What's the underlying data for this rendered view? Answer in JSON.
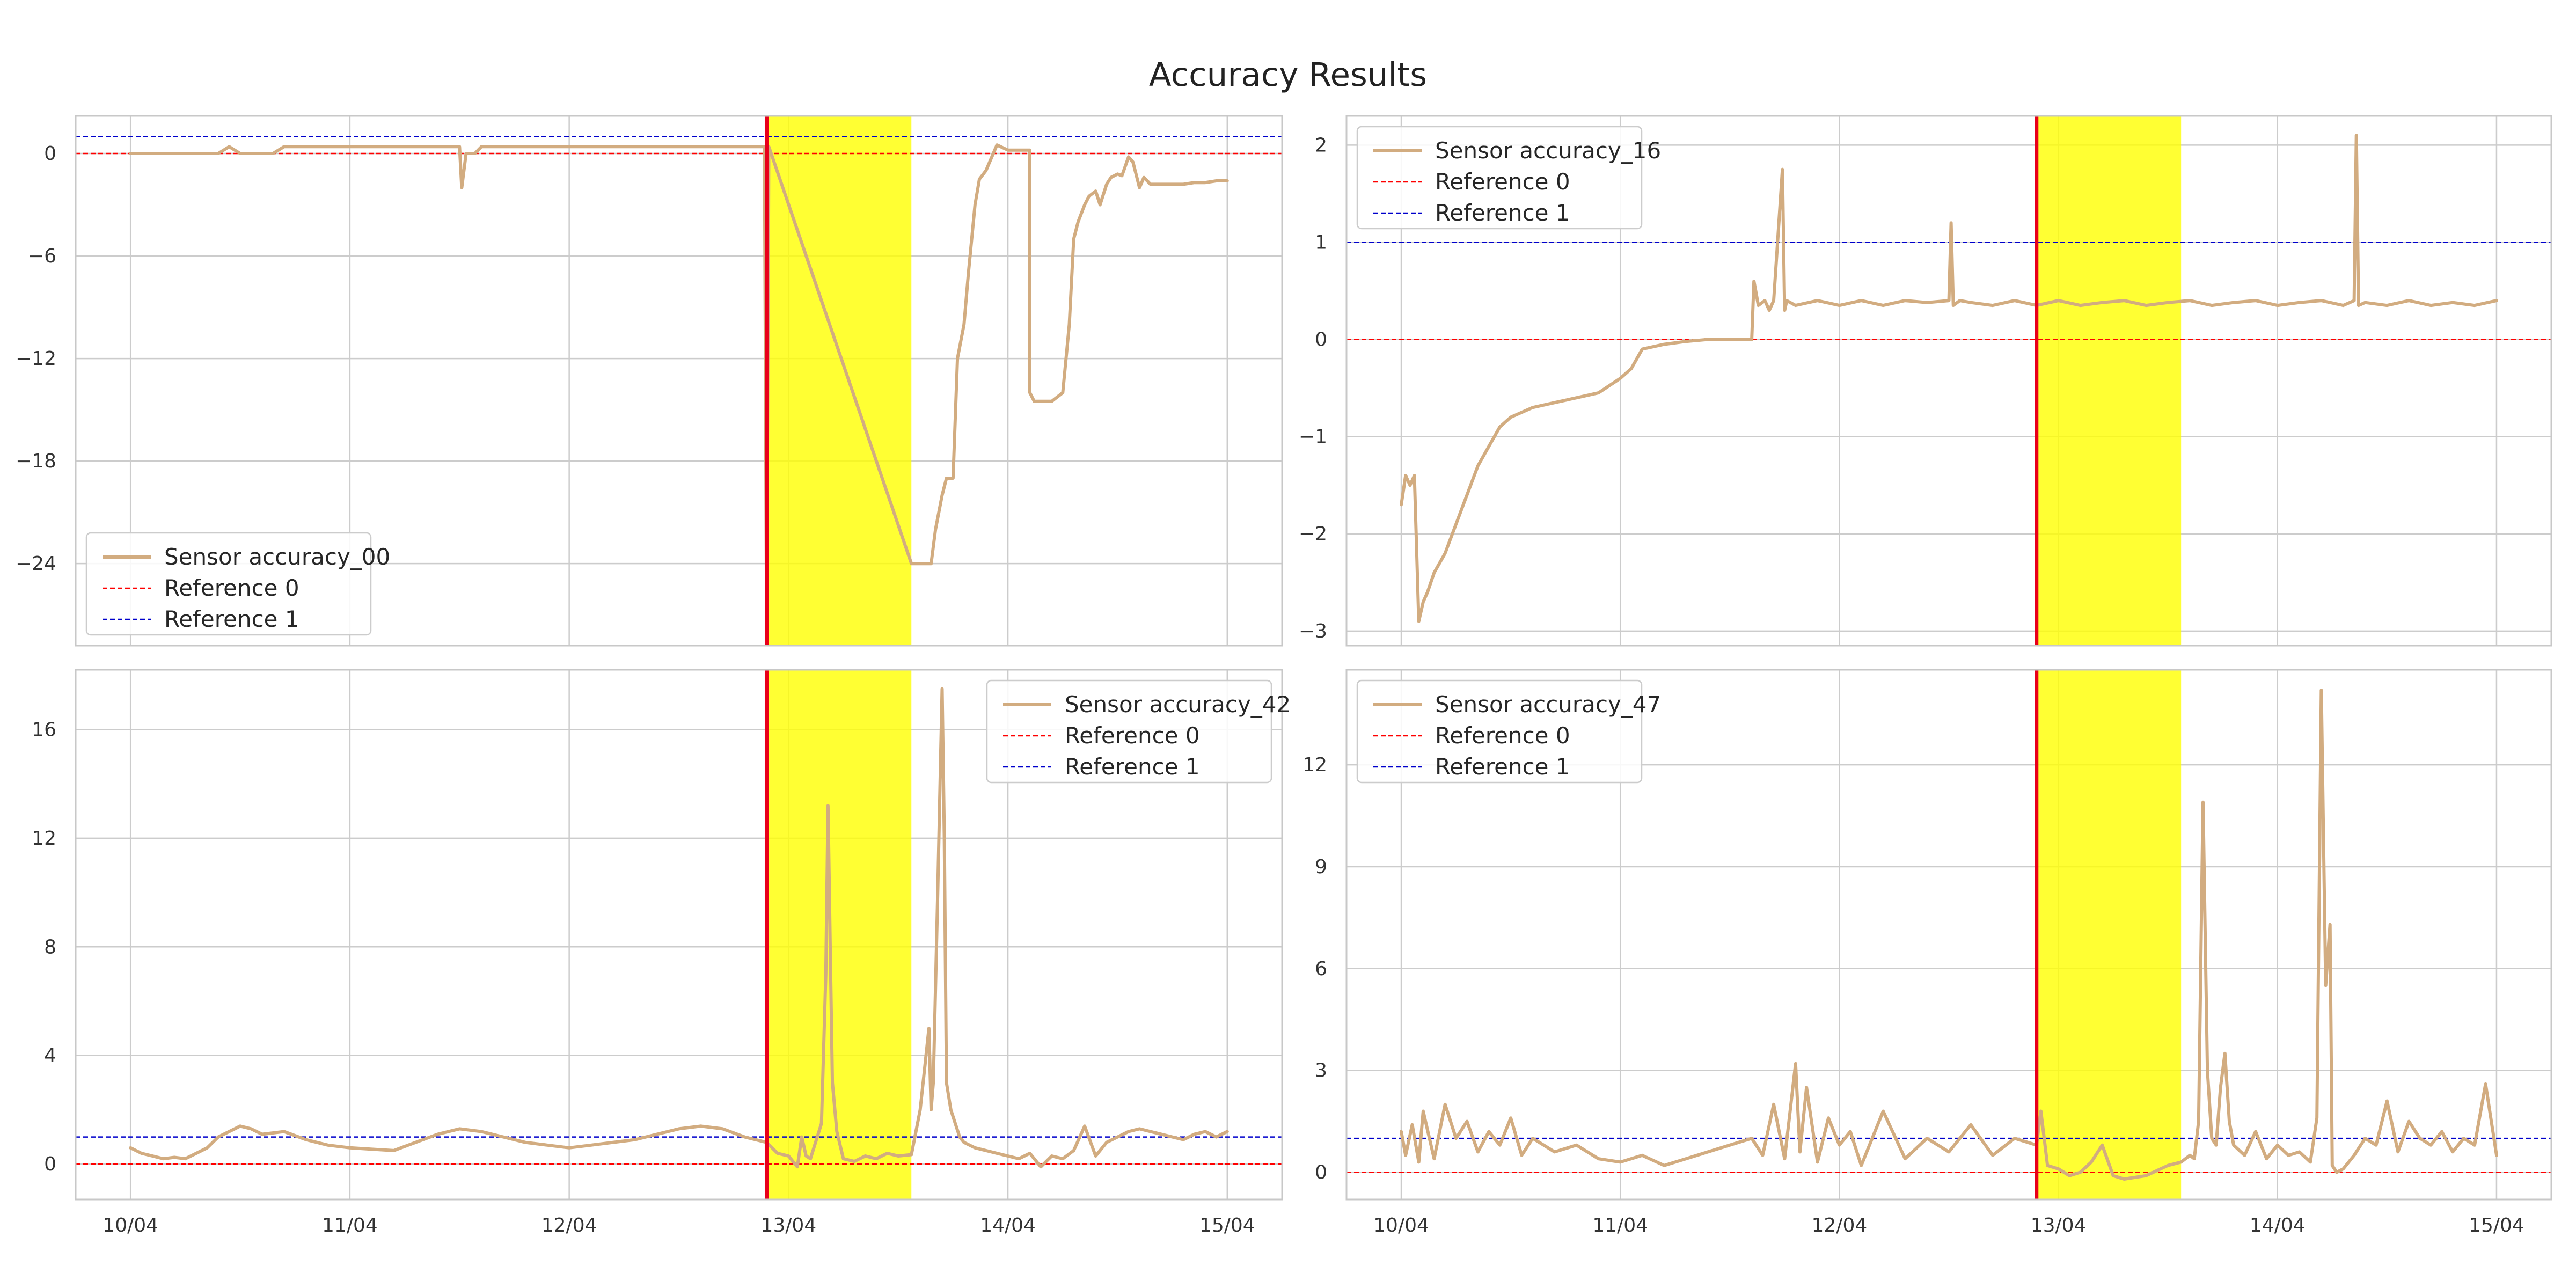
{
  "title": "Accuracy Results",
  "colors": {
    "sensor": "#d2ac80",
    "reference_0": "#ff0000",
    "reference_1": "#0000cc",
    "event_line": "#e8001a",
    "highlight": "#ffff00"
  },
  "chart_data": [
    {
      "type": "line",
      "x_ticks": [
        "10/04",
        "11/04",
        "12/04",
        "13/04",
        "14/04",
        "15/04"
      ],
      "x_tick_days": [
        0,
        1,
        2,
        3,
        4,
        5
      ],
      "xlim": [
        -0.25,
        5.25
      ],
      "ylim": [
        -28.8,
        2.2
      ],
      "y_ticks": [
        0,
        -6,
        -12,
        -18,
        -24
      ],
      "y_tick_labels": [
        "0",
        "−6",
        "−12",
        "−18",
        "−24"
      ],
      "grid": true,
      "legend_position": "lower-left",
      "event_x": 2.9,
      "highlight_range": [
        2.9,
        3.56
      ],
      "series": [
        {
          "name": "Sensor accuracy_00",
          "x": [
            0,
            0.05,
            0.1,
            0.15,
            0.2,
            0.25,
            0.3,
            0.35,
            0.4,
            0.45,
            0.5,
            0.55,
            0.6,
            0.65,
            0.7,
            0.8,
            0.9,
            1.0,
            1.1,
            1.2,
            1.3,
            1.4,
            1.5,
            1.51,
            1.53,
            1.55,
            1.57,
            1.6,
            1.65,
            1.7,
            1.72,
            1.75,
            1.8,
            1.9,
            2.0,
            2.1,
            2.2,
            2.3,
            2.4,
            2.5,
            2.6,
            2.7,
            2.8,
            2.89,
            2.9,
            2.91,
            3.56,
            3.6,
            3.65,
            3.67,
            3.7,
            3.72,
            3.75,
            3.77,
            3.8,
            3.82,
            3.85,
            3.87,
            3.9,
            3.95,
            4.0,
            4.05,
            4.1,
            4.1,
            4.12,
            4.13,
            4.15,
            4.2,
            4.25,
            4.28,
            4.3,
            4.32,
            4.35,
            4.37,
            4.4,
            4.42,
            4.45,
            4.47,
            4.5,
            4.52,
            4.55,
            4.57,
            4.6,
            4.62,
            4.65,
            4.7,
            4.75,
            4.8,
            4.85,
            4.9,
            4.95,
            5.0
          ],
          "y": [
            0,
            0,
            0,
            0,
            0,
            0,
            0,
            0,
            0,
            0.4,
            0,
            0,
            0,
            0,
            0.4,
            0.4,
            0.4,
            0.4,
            0.4,
            0.4,
            0.4,
            0.4,
            0.4,
            -2,
            0,
            0,
            0,
            0.4,
            0.4,
            0.4,
            0.4,
            0.4,
            0.4,
            0.4,
            0.4,
            0.4,
            0.4,
            0.4,
            0.4,
            0.4,
            0.4,
            0.4,
            0.4,
            0.4,
            -28,
            0.4,
            -24,
            -24,
            -24,
            -22,
            -20,
            -19,
            -19,
            -12,
            -10,
            -7,
            -3,
            -1.5,
            -1,
            0.5,
            0.2,
            0.2,
            0.2,
            -14,
            -14.5,
            -14.5,
            -14.5,
            -14.5,
            -14,
            -10,
            -5,
            -4,
            -3,
            -2.5,
            -2.2,
            -3,
            -1.8,
            -1.4,
            -1.2,
            -1.3,
            -0.2,
            -0.5,
            -2,
            -1.4,
            -1.8,
            -1.8,
            -1.8,
            -1.8,
            -1.7,
            -1.7,
            -1.6,
            -1.6
          ]
        },
        {
          "name": "Reference 0",
          "constant": 0
        },
        {
          "name": "Reference 1",
          "constant": 1
        }
      ]
    },
    {
      "type": "line",
      "x_ticks": [
        "10/04",
        "11/04",
        "12/04",
        "13/04",
        "14/04",
        "15/04"
      ],
      "x_tick_days": [
        0,
        1,
        2,
        3,
        4,
        5
      ],
      "xlim": [
        -0.25,
        5.25
      ],
      "ylim": [
        -3.15,
        2.3
      ],
      "y_ticks": [
        2,
        1,
        0,
        -1,
        -2,
        -3
      ],
      "y_tick_labels": [
        "2",
        "1",
        "0",
        "−1",
        "−2",
        "−3"
      ],
      "grid": true,
      "legend_position": "upper-left",
      "event_x": 2.9,
      "highlight_range": [
        2.9,
        3.56
      ],
      "series": [
        {
          "name": "Sensor accuracy_16",
          "x": [
            0,
            0.02,
            0.04,
            0.06,
            0.08,
            0.1,
            0.12,
            0.15,
            0.2,
            0.25,
            0.3,
            0.35,
            0.4,
            0.45,
            0.5,
            0.6,
            0.7,
            0.8,
            0.9,
            1.0,
            1.05,
            1.1,
            1.2,
            1.3,
            1.4,
            1.5,
            1.6,
            1.61,
            1.63,
            1.66,
            1.68,
            1.7,
            1.74,
            1.75,
            1.76,
            1.8,
            1.9,
            2.0,
            2.1,
            2.2,
            2.3,
            2.4,
            2.5,
            2.51,
            2.52,
            2.55,
            2.6,
            2.7,
            2.8,
            2.9,
            3.0,
            3.1,
            3.2,
            3.3,
            3.4,
            3.5,
            3.6,
            3.7,
            3.8,
            3.9,
            4.0,
            4.1,
            4.2,
            4.3,
            4.35,
            4.36,
            4.37,
            4.4,
            4.5,
            4.6,
            4.7,
            4.8,
            4.9,
            5.0
          ],
          "y": [
            -1.7,
            -1.4,
            -1.5,
            -1.4,
            -2.9,
            -2.7,
            -2.6,
            -2.4,
            -2.2,
            -1.9,
            -1.6,
            -1.3,
            -1.1,
            -0.9,
            -0.8,
            -0.7,
            -0.65,
            -0.6,
            -0.55,
            -0.4,
            -0.3,
            -0.1,
            -0.05,
            -0.02,
            0,
            0,
            0,
            0.6,
            0.35,
            0.4,
            0.3,
            0.4,
            1.75,
            0.3,
            0.4,
            0.35,
            0.4,
            0.35,
            0.4,
            0.35,
            0.4,
            0.38,
            0.4,
            1.2,
            0.35,
            0.4,
            0.38,
            0.35,
            0.4,
            0.35,
            0.4,
            0.35,
            0.38,
            0.4,
            0.35,
            0.38,
            0.4,
            0.35,
            0.38,
            0.4,
            0.35,
            0.38,
            0.4,
            0.35,
            0.4,
            2.1,
            0.35,
            0.38,
            0.35,
            0.4,
            0.35,
            0.38,
            0.35,
            0.4
          ]
        },
        {
          "name": "Reference 0",
          "constant": 0
        },
        {
          "name": "Reference 1",
          "constant": 1
        }
      ]
    },
    {
      "type": "line",
      "x_ticks": [
        "10/04",
        "11/04",
        "12/04",
        "13/04",
        "14/04",
        "15/04"
      ],
      "x_tick_days": [
        0,
        1,
        2,
        3,
        4,
        5
      ],
      "xlim": [
        -0.25,
        5.25
      ],
      "ylim": [
        -1.3,
        18.2
      ],
      "y_ticks": [
        0,
        4,
        8,
        12,
        16
      ],
      "y_tick_labels": [
        "0",
        "4",
        "8",
        "12",
        "16"
      ],
      "grid": true,
      "legend_position": "upper-right",
      "event_x": 2.9,
      "highlight_range": [
        2.9,
        3.56
      ],
      "series": [
        {
          "name": "Sensor accuracy_42",
          "x": [
            0,
            0.05,
            0.1,
            0.15,
            0.2,
            0.25,
            0.3,
            0.35,
            0.4,
            0.45,
            0.5,
            0.55,
            0.6,
            0.7,
            0.8,
            0.9,
            1.0,
            1.1,
            1.2,
            1.3,
            1.4,
            1.5,
            1.6,
            1.7,
            1.8,
            1.9,
            2.0,
            2.1,
            2.2,
            2.3,
            2.4,
            2.5,
            2.6,
            2.7,
            2.8,
            2.9,
            2.95,
            3.0,
            3.02,
            3.04,
            3.06,
            3.08,
            3.1,
            3.15,
            3.17,
            3.18,
            3.19,
            3.2,
            3.22,
            3.25,
            3.3,
            3.35,
            3.4,
            3.45,
            3.5,
            3.56,
            3.6,
            3.62,
            3.64,
            3.65,
            3.66,
            3.68,
            3.7,
            3.71,
            3.72,
            3.74,
            3.76,
            3.78,
            3.8,
            3.85,
            3.9,
            3.95,
            4.0,
            4.05,
            4.1,
            4.15,
            4.2,
            4.25,
            4.3,
            4.35,
            4.4,
            4.45,
            4.5,
            4.55,
            4.6,
            4.65,
            4.7,
            4.75,
            4.8,
            4.85,
            4.9,
            4.95,
            5.0
          ],
          "y": [
            0.6,
            0.4,
            0.3,
            0.2,
            0.25,
            0.2,
            0.4,
            0.6,
            1,
            1.2,
            1.4,
            1.3,
            1.1,
            1.2,
            0.9,
            0.7,
            0.6,
            0.55,
            0.5,
            0.8,
            1.1,
            1.3,
            1.2,
            1.0,
            0.8,
            0.7,
            0.6,
            0.7,
            0.8,
            0.9,
            1.1,
            1.3,
            1.4,
            1.3,
            1.0,
            0.8,
            0.4,
            0.3,
            0.1,
            -0.1,
            1,
            0.3,
            0.2,
            1.5,
            7,
            13.2,
            8,
            3,
            1.2,
            0.2,
            0.1,
            0.3,
            0.2,
            0.4,
            0.3,
            0.35,
            2,
            3.5,
            5,
            2,
            3,
            10,
            17.5,
            12,
            3,
            2,
            1.5,
            1,
            0.8,
            0.6,
            0.5,
            0.4,
            0.3,
            0.2,
            0.4,
            -0.1,
            0.3,
            0.2,
            0.5,
            1.4,
            0.3,
            0.8,
            1.0,
            1.2,
            1.3,
            1.2,
            1.1,
            1.0,
            0.9,
            1.1,
            1.2,
            1.0,
            1.2
          ]
        },
        {
          "name": "Reference 0",
          "constant": 0
        },
        {
          "name": "Reference 1",
          "constant": 1
        }
      ]
    },
    {
      "type": "line",
      "x_ticks": [
        "10/04",
        "11/04",
        "12/04",
        "13/04",
        "14/04",
        "15/04"
      ],
      "x_tick_days": [
        0,
        1,
        2,
        3,
        4,
        5
      ],
      "xlim": [
        -0.25,
        5.25
      ],
      "ylim": [
        -0.8,
        14.8
      ],
      "y_ticks": [
        0,
        3,
        6,
        9,
        12
      ],
      "y_tick_labels": [
        "0",
        "3",
        "6",
        "9",
        "12"
      ],
      "grid": true,
      "legend_position": "upper-left",
      "event_x": 2.9,
      "highlight_range": [
        2.9,
        3.56
      ],
      "series": [
        {
          "name": "Sensor accuracy_47",
          "x": [
            0,
            0.02,
            0.05,
            0.08,
            0.1,
            0.15,
            0.2,
            0.25,
            0.3,
            0.35,
            0.4,
            0.45,
            0.5,
            0.55,
            0.6,
            0.7,
            0.8,
            0.9,
            1.0,
            1.1,
            1.2,
            1.3,
            1.4,
            1.5,
            1.6,
            1.65,
            1.7,
            1.75,
            1.8,
            1.82,
            1.85,
            1.9,
            1.95,
            2.0,
            2.05,
            2.1,
            2.2,
            2.3,
            2.4,
            2.5,
            2.6,
            2.7,
            2.8,
            2.9,
            2.92,
            2.95,
            3.0,
            3.05,
            3.1,
            3.15,
            3.2,
            3.25,
            3.3,
            3.4,
            3.5,
            3.56,
            3.6,
            3.62,
            3.64,
            3.66,
            3.68,
            3.7,
            3.72,
            3.74,
            3.76,
            3.78,
            3.8,
            3.85,
            3.9,
            3.95,
            4.0,
            4.05,
            4.1,
            4.15,
            4.18,
            4.2,
            4.22,
            4.24,
            4.25,
            4.27,
            4.3,
            4.35,
            4.4,
            4.45,
            4.5,
            4.55,
            4.6,
            4.65,
            4.7,
            4.75,
            4.8,
            4.85,
            4.9,
            4.95,
            5.0
          ],
          "y": [
            1.2,
            0.5,
            1.4,
            0.3,
            1.8,
            0.4,
            2.0,
            1.0,
            1.5,
            0.6,
            1.2,
            0.8,
            1.6,
            0.5,
            1.0,
            0.6,
            0.8,
            0.4,
            0.3,
            0.5,
            0.2,
            0.4,
            0.6,
            0.8,
            1.0,
            0.5,
            2.0,
            0.4,
            3.2,
            0.6,
            2.5,
            0.3,
            1.6,
            0.8,
            1.2,
            0.2,
            1.8,
            0.4,
            1.0,
            0.6,
            1.4,
            0.5,
            1.0,
            0.8,
            1.8,
            0.2,
            0.1,
            -0.1,
            0.0,
            0.3,
            0.8,
            -0.1,
            -0.2,
            -0.1,
            0.2,
            0.3,
            0.5,
            0.4,
            1.5,
            10.9,
            3,
            1,
            0.8,
            2.5,
            3.5,
            1.5,
            0.8,
            0.5,
            1.2,
            0.4,
            0.8,
            0.5,
            0.6,
            0.3,
            1.6,
            14.2,
            5.5,
            7.3,
            0.2,
            0.0,
            0.1,
            0.5,
            1.0,
            0.8,
            2.1,
            0.6,
            1.5,
            1.0,
            0.8,
            1.2,
            0.6,
            1.0,
            0.8,
            2.6,
            0.5
          ]
        },
        {
          "name": "Reference 0",
          "constant": 0
        },
        {
          "name": "Reference 1",
          "constant": 1
        }
      ]
    }
  ]
}
